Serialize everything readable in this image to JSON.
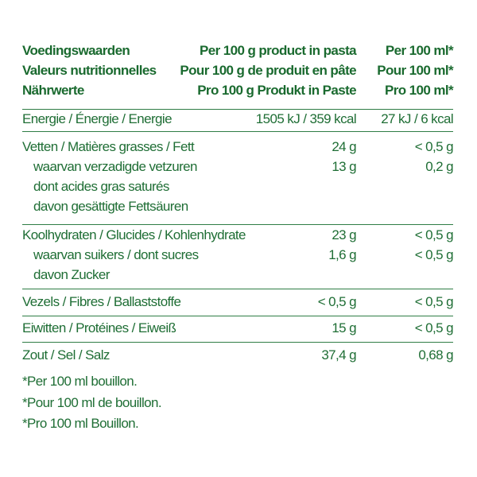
{
  "header": [
    {
      "label": "Voedingswaarden",
      "col2": "Per 100 g product in pasta",
      "col3": "Per 100 ml*"
    },
    {
      "label": "Valeurs nutritionnelles",
      "col2": "Pour 100 g de produit en pâte",
      "col3": "Pour 100 ml*"
    },
    {
      "label": "Nährwerte",
      "col2": "Pro 100 g Produkt in Paste",
      "col3": "Pro 100 ml*"
    }
  ],
  "rows": {
    "energy": {
      "label": "Energie / Énergie / Energie",
      "col2": "1505 kJ / 359 kcal",
      "col3": "27 kJ / 6 kcal"
    },
    "fat": {
      "label": "Vetten / Matières grasses / Fett",
      "col2": "24 g",
      "col3": "< 0,5 g"
    },
    "saturates": {
      "label_lines": [
        "waarvan verzadigde vetzuren",
        "dont acides gras saturés",
        "davon gesättigte Fettsäuren"
      ],
      "col2": "13 g",
      "col3": "0,2 g"
    },
    "carbs": {
      "label": "Koolhydraten / Glucides / Kohlenhydrate",
      "col2": "23 g",
      "col3": "< 0,5 g"
    },
    "sugars": {
      "label_lines": [
        "waarvan suikers / dont sucres",
        "davon Zucker"
      ],
      "col2": "1,6 g",
      "col3": "< 0,5 g"
    },
    "fibre": {
      "label": "Vezels / Fibres / Ballaststoffe",
      "col2": "< 0,5 g",
      "col3": "< 0,5 g"
    },
    "protein": {
      "label": "Eiwitten / Protéines / Eiweiß",
      "col2": "15 g",
      "col3": "< 0,5 g"
    },
    "salt": {
      "label": "Zout / Sel / Salz",
      "col2": "37,4 g",
      "col3": "0,68 g"
    }
  },
  "footnotes": [
    "*Per 100 ml bouillon.",
    "*Pour 100 ml de bouillon.",
    "*Pro 100 ml Bouillon."
  ],
  "colors": {
    "text": "#1f6e35",
    "rule": "#2f7d45"
  }
}
